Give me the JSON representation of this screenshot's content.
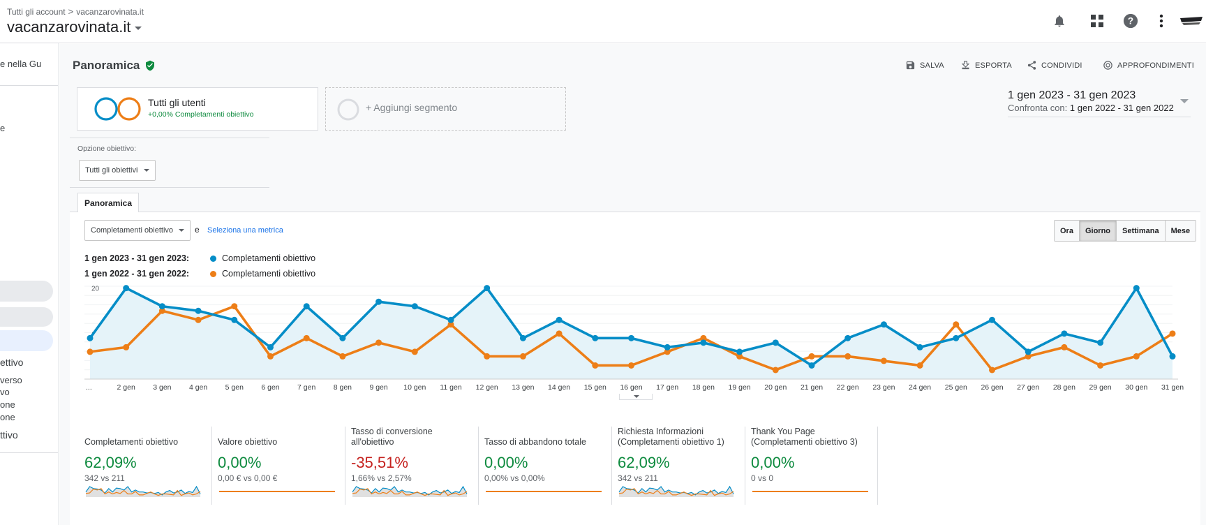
{
  "header": {
    "breadcrumb_all": "Tutti gli account",
    "breadcrumb_sep": ">",
    "breadcrumb_account": "vacanzarovinata.it",
    "account_name": "vacanzarovinata.it"
  },
  "sidebar": {
    "texts": [
      "e nella Gu",
      "e",
      "ettivo",
      "verso",
      "vo",
      "one",
      "one",
      "ttivo"
    ]
  },
  "page": {
    "title": "Panoramica",
    "actions": [
      "SALVA",
      "ESPORTA",
      "CONDIVIDI",
      "APPROFONDIMENTI"
    ]
  },
  "segments": {
    "active_name": "Tutti gli utenti",
    "active_detail": "+0,00% Completamenti obiettivo",
    "add_label": "+ Aggiungi segmento"
  },
  "date": {
    "range": "1 gen 2023 - 31 gen 2023",
    "compare_prefix": "Confronta con:",
    "compare_range": "1 gen 2022 - 31 gen 2022"
  },
  "goal_option": {
    "label": "Opzione obiettivo:",
    "selected": "Tutti gli obiettivi"
  },
  "tab": {
    "label": "Panoramica"
  },
  "metric_select": {
    "selected": "Completamenti obiettivo",
    "conj": "e",
    "add_metric": "Seleziona una metrica"
  },
  "granularity": {
    "options": [
      "Ora",
      "Giorno",
      "Settimana",
      "Mese"
    ],
    "active": "Giorno"
  },
  "legend": {
    "rows": [
      {
        "range": "1 gen 2023 - 31 gen 2023:",
        "label": "Completamenti obiettivo",
        "color": "#058dc7"
      },
      {
        "range": "1 gen 2022 - 31 gen 2022:",
        "label": "Completamenti obiettivo",
        "color": "#ed7e17"
      }
    ]
  },
  "chart_data": {
    "type": "line",
    "y_ticks": [
      "20",
      "10"
    ],
    "ylim": [
      0,
      20
    ],
    "x_labels": [
      "...",
      "2 gen",
      "3 gen",
      "4 gen",
      "5 gen",
      "6 gen",
      "7 gen",
      "8 gen",
      "9 gen",
      "10 gen",
      "11 gen",
      "12 gen",
      "13 gen",
      "14 gen",
      "15 gen",
      "16 gen",
      "17 gen",
      "18 gen",
      "19 gen",
      "20 gen",
      "21 gen",
      "22 gen",
      "23 gen",
      "24 gen",
      "25 gen",
      "26 gen",
      "27 gen",
      "28 gen",
      "29 gen",
      "30 gen",
      "31 gen"
    ],
    "series": [
      {
        "values": [
          9,
          20,
          16,
          15,
          13,
          7,
          16,
          9,
          17,
          16,
          13,
          20,
          9,
          13,
          9,
          9,
          7,
          8,
          6,
          8,
          3,
          9,
          12,
          7,
          9,
          13,
          6,
          10,
          8,
          20,
          5
        ],
        "color": "#058dc7"
      },
      {
        "values": [
          6,
          7,
          15,
          13,
          16,
          5,
          9,
          5,
          8,
          6,
          12,
          5,
          5,
          10,
          3,
          3,
          6,
          9,
          5,
          2,
          5,
          5,
          4,
          3,
          12,
          2,
          5,
          7,
          3,
          5,
          10
        ],
        "color": "#ed7e17"
      }
    ]
  },
  "metrics": [
    {
      "label": "Completamenti obiettivo",
      "value": "62,09%",
      "compare": "342 vs 211",
      "color": "#0d8a3e"
    },
    {
      "label": "Valore obiettivo",
      "value": "0,00%",
      "compare": "0,00 € vs 0,00 €",
      "color": "#0d8a3e"
    },
    {
      "label": "Tasso di conversione all'obiettivo",
      "value": "-35,51%",
      "compare": "1,66% vs 2,57%",
      "color": "#c5221f"
    },
    {
      "label": "Tasso di abbandono totale",
      "value": "0,00%",
      "compare": "0,00% vs 0,00%",
      "color": "#0d8a3e"
    },
    {
      "label": "Richiesta Informazioni (Completamenti obiettivo 1)",
      "value": "62,09%",
      "compare": "342 vs 211",
      "color": "#0d8a3e"
    },
    {
      "label": "Thank You Page (Completamenti obiettivo 3)",
      "value": "0,00%",
      "compare": "0 vs 0",
      "color": "#0d8a3e"
    }
  ]
}
